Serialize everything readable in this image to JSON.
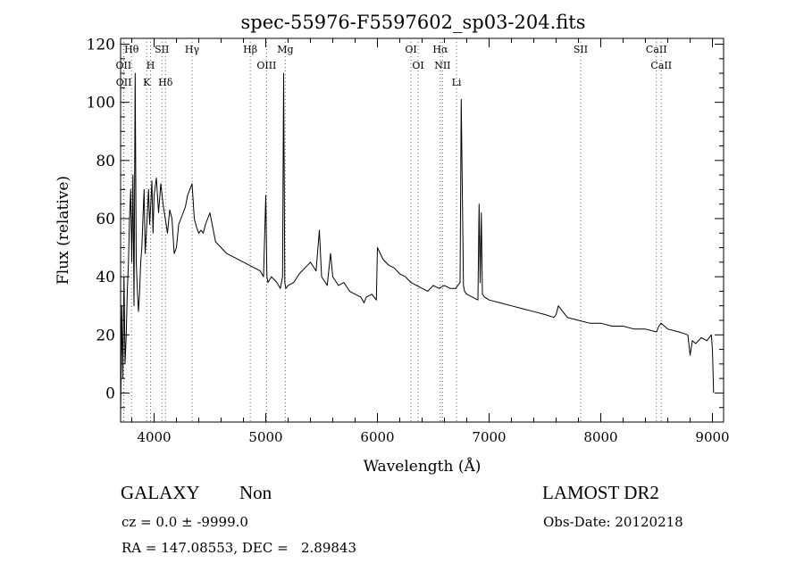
{
  "chart_data": {
    "type": "line",
    "title": "spec-55976-F5597602_sp03-204.fits",
    "xlabel": "Wavelength (Å)",
    "ylabel": "Flux (relative)",
    "xlim": [
      3700,
      9100
    ],
    "ylim": [
      -10,
      122
    ],
    "xticks": [
      4000,
      5000,
      6000,
      7000,
      8000,
      9000
    ],
    "yticks": [
      0,
      20,
      40,
      60,
      80,
      100,
      120
    ],
    "grid": false,
    "series": [
      {
        "x": [
          3700,
          3710,
          3720,
          3730,
          3740,
          3750,
          3760,
          3770,
          3780,
          3790,
          3800,
          3810,
          3820,
          3830,
          3840,
          3850,
          3860,
          3870,
          3880,
          3890,
          3900,
          3910,
          3920,
          3930,
          3940,
          3950,
          3960,
          3970,
          3980,
          3990,
          4000,
          4020,
          4040,
          4060,
          4080,
          4100,
          4120,
          4140,
          4160,
          4180,
          4200,
          4220,
          4240,
          4260,
          4280,
          4300,
          4320,
          4340,
          4360,
          4380,
          4400,
          4420,
          4440,
          4460,
          4480,
          4500,
          4550,
          4600,
          4650,
          4700,
          4750,
          4800,
          4850,
          4900,
          4950,
          4980,
          5000,
          5010,
          5020,
          5050,
          5100,
          5130,
          5150,
          5160,
          5170,
          5180,
          5200,
          5250,
          5300,
          5350,
          5400,
          5450,
          5480,
          5500,
          5550,
          5580,
          5600,
          5650,
          5700,
          5750,
          5800,
          5850,
          5880,
          5900,
          5950,
          5990,
          6000,
          6050,
          6100,
          6150,
          6200,
          6250,
          6300,
          6350,
          6400,
          6450,
          6500,
          6550,
          6600,
          6650,
          6700,
          6740,
          6750,
          6760,
          6770,
          6780,
          6800,
          6850,
          6900,
          6910,
          6920,
          6930,
          6940,
          6960,
          7000,
          7100,
          7200,
          7300,
          7400,
          7500,
          7580,
          7600,
          7620,
          7700,
          7800,
          7900,
          8000,
          8100,
          8200,
          8300,
          8400,
          8500,
          8520,
          8540,
          8600,
          8700,
          8780,
          8800,
          8820,
          8850,
          8900,
          8950,
          8990,
          9000,
          9010
        ],
        "y": [
          -8,
          30,
          5,
          40,
          10,
          20,
          35,
          45,
          60,
          70,
          45,
          75,
          30,
          110,
          45,
          35,
          28,
          35,
          45,
          50,
          60,
          70,
          48,
          55,
          62,
          70,
          58,
          65,
          73,
          55,
          68,
          74,
          62,
          72,
          65,
          60,
          55,
          63,
          60,
          48,
          50,
          58,
          60,
          62,
          64,
          68,
          70,
          72,
          60,
          57,
          55,
          56,
          55,
          58,
          60,
          62,
          52,
          50,
          48,
          47,
          46,
          45,
          44,
          43,
          42,
          40,
          68,
          40,
          38,
          40,
          38,
          36,
          40,
          110,
          38,
          36,
          37,
          38,
          41,
          43,
          45,
          42,
          56,
          40,
          37,
          48,
          40,
          37,
          38,
          35,
          34,
          33,
          31,
          33,
          34,
          32,
          50,
          46,
          44,
          43,
          41,
          40,
          38,
          37,
          36,
          35,
          37,
          36,
          37,
          36,
          36,
          38,
          101,
          70,
          37,
          35,
          34,
          33,
          32,
          65,
          38,
          62,
          34,
          33,
          32,
          31,
          30,
          29,
          28,
          27,
          26,
          27,
          30,
          26,
          25,
          24,
          24,
          23,
          23,
          22,
          22,
          21,
          23,
          24,
          22,
          21,
          20,
          13,
          18,
          17,
          19,
          18,
          20,
          15,
          0
        ]
      }
    ],
    "annotations": [
      {
        "label": "Hθ",
        "x": 3798
      },
      {
        "label": "OII",
        "x": 3727
      },
      {
        "label": "OII",
        "x": 3729
      },
      {
        "label": "SII",
        "x": 4070
      },
      {
        "label": "H",
        "x": 3968
      },
      {
        "label": "K",
        "x": 3934
      },
      {
        "label": "Hδ",
        "x": 4102
      },
      {
        "label": "Hγ",
        "x": 4340
      },
      {
        "label": "Hβ",
        "x": 4861
      },
      {
        "label": "OIII",
        "x": 5007
      },
      {
        "label": "Mg",
        "x": 5175
      },
      {
        "label": "OI",
        "x": 6300
      },
      {
        "label": "OI",
        "x": 6364
      },
      {
        "label": "Hα",
        "x": 6563
      },
      {
        "label": "NII",
        "x": 6583
      },
      {
        "label": "Li",
        "x": 6708
      },
      {
        "label": "SII",
        "x": 7820
      },
      {
        "label": "CaII",
        "x": 8498
      },
      {
        "label": "CaII",
        "x": 8542
      }
    ]
  },
  "info": {
    "object_type": "GALAXY",
    "subclass": "Non",
    "survey": "LAMOST DR2",
    "redshift": "cz = 0.0 ± -9999.0",
    "obs_date": "Obs-Date: 20120218",
    "coords": "RA = 147.08553, DEC =   2.89843"
  }
}
